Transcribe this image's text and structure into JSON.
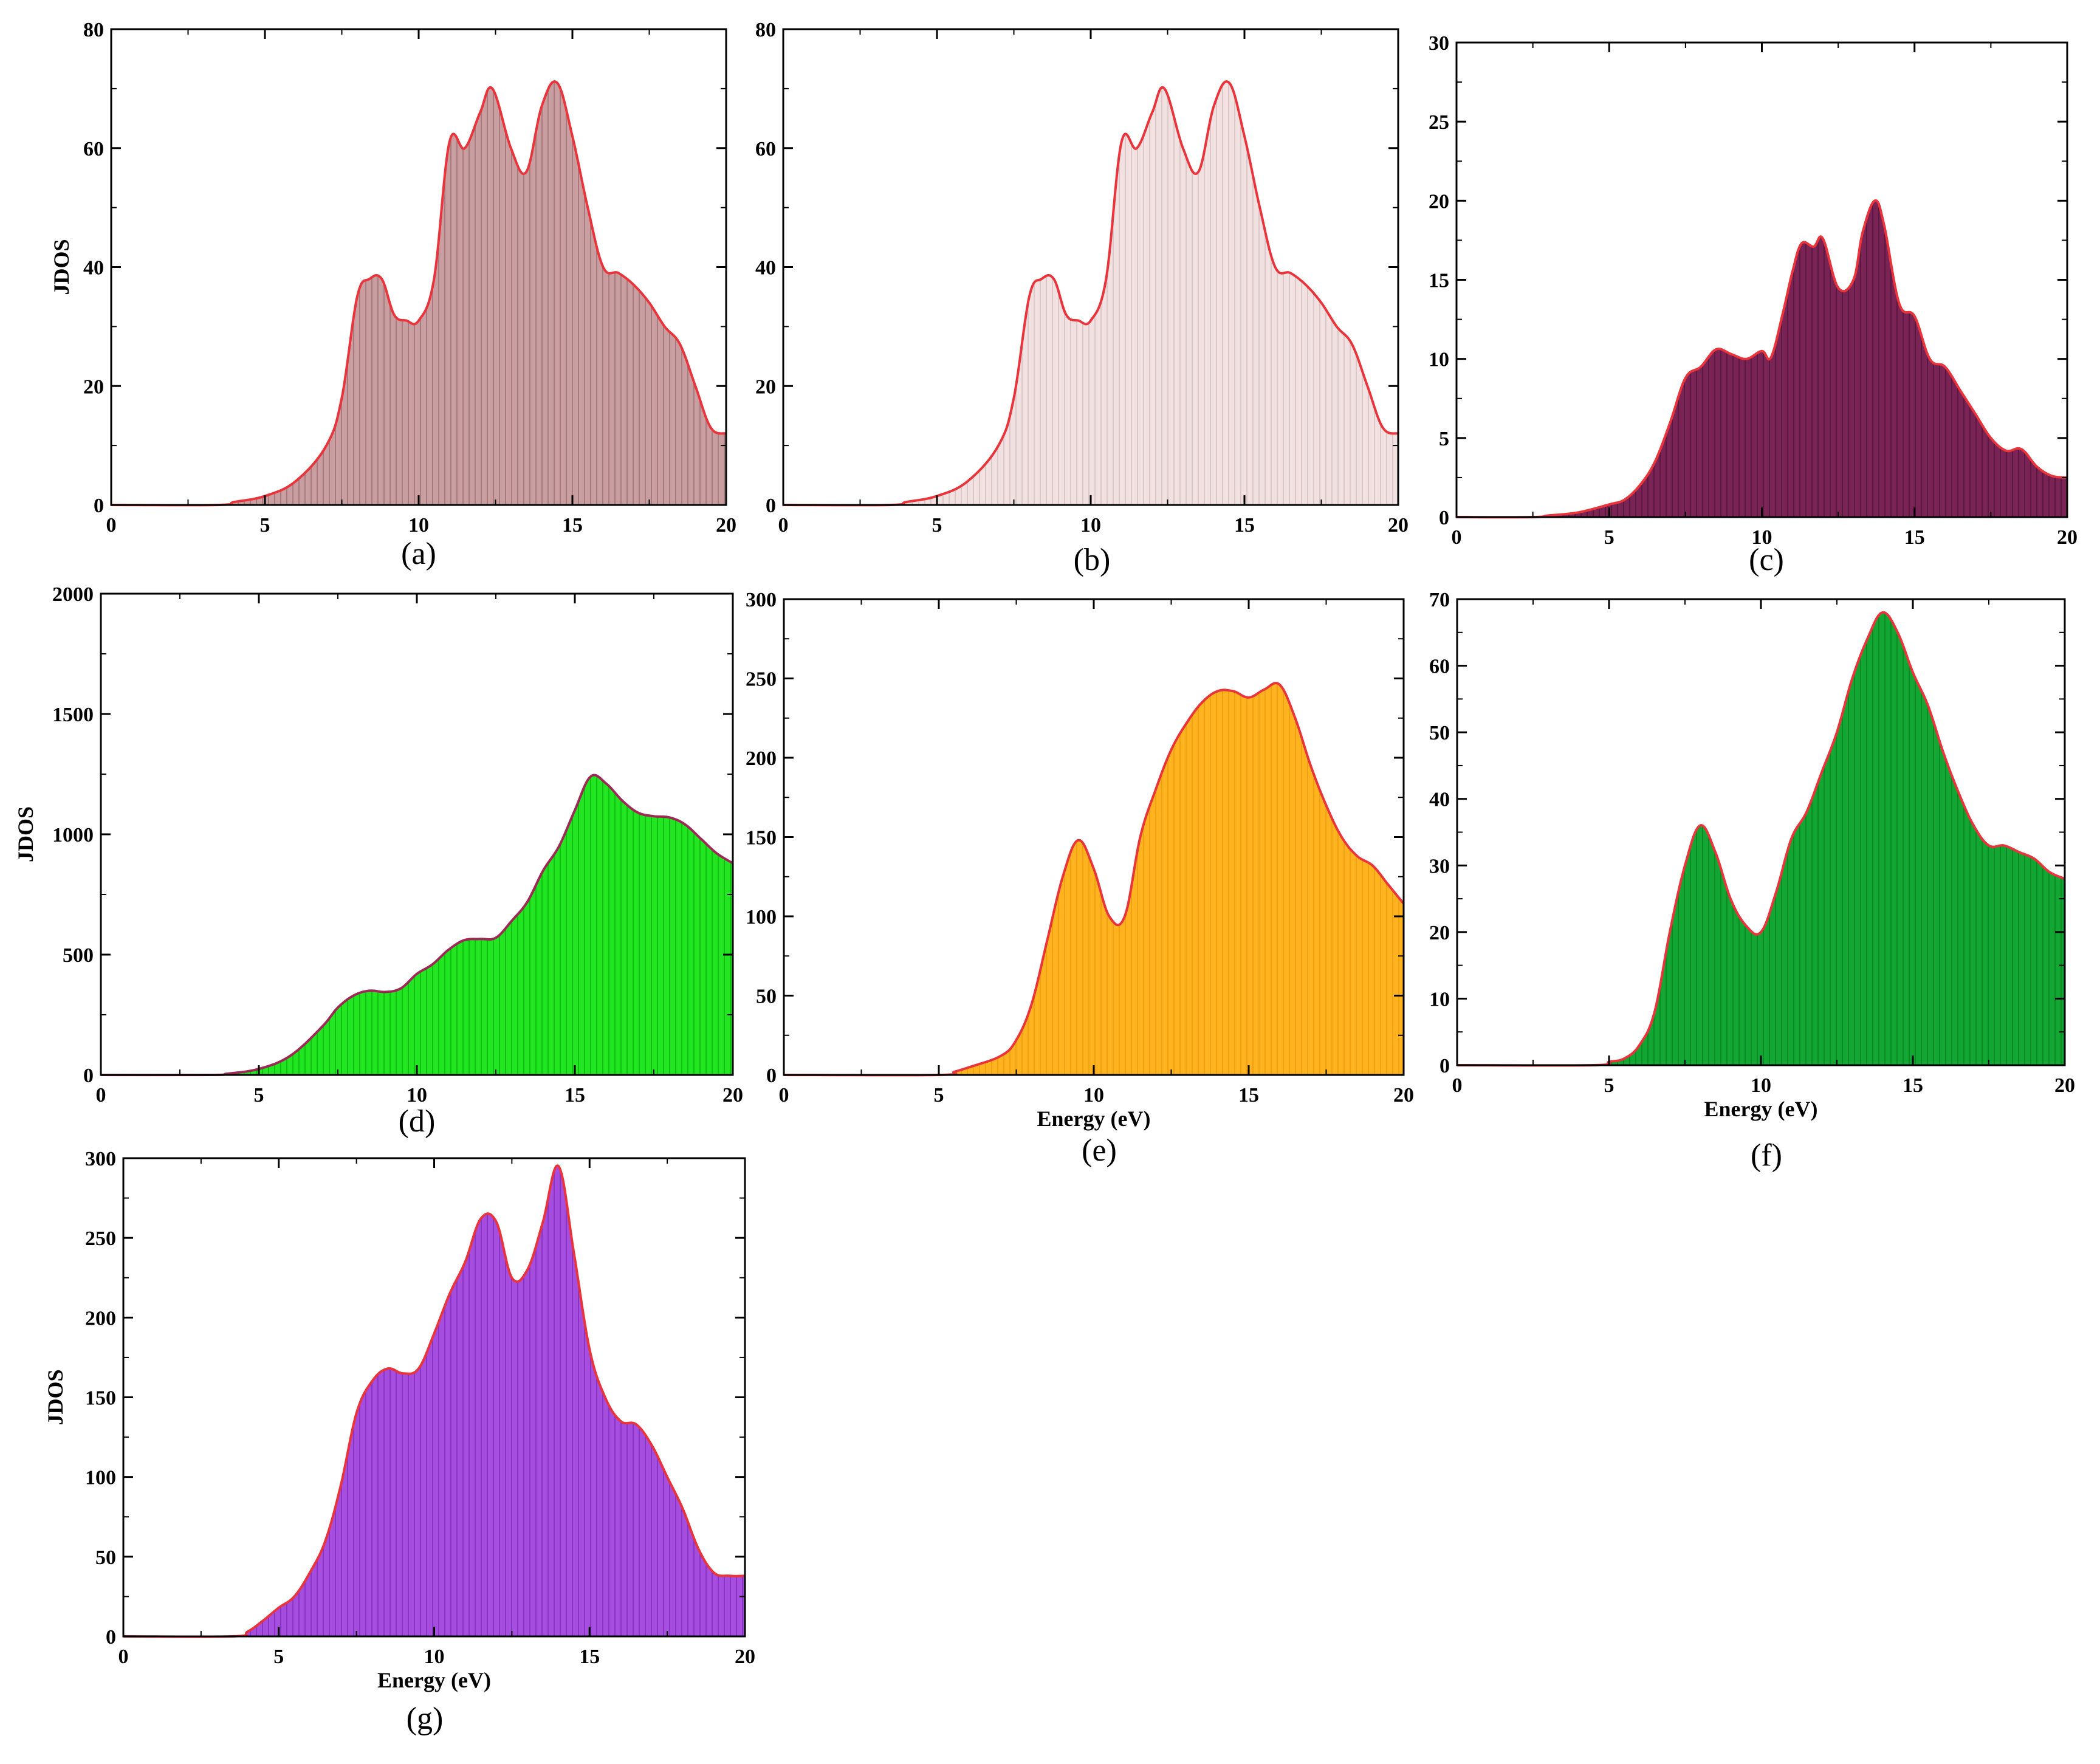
{
  "chart_data": [
    {
      "panel": "(a)",
      "type": "area",
      "ylabel": "JDOS",
      "xlabel": "",
      "xlim": [
        0,
        20
      ],
      "ylim": [
        0,
        80
      ],
      "xticks": [
        0,
        5,
        10,
        15,
        20
      ],
      "yticks": [
        0,
        20,
        40,
        60,
        80
      ],
      "fill_color": "#c99ea0",
      "hatch_color": "#a87a7d",
      "line_color": "#e8343a",
      "x": [
        0,
        3.5,
        4,
        5,
        6,
        7,
        7.5,
        8,
        8.4,
        8.8,
        9.2,
        9.6,
        10,
        10.5,
        11,
        11.5,
        12,
        12.4,
        13,
        13.5,
        14,
        14.5,
        15,
        15.5,
        16,
        16.5,
        17,
        17.5,
        18,
        18.5,
        19,
        19.5,
        20
      ],
      "y": [
        0,
        0,
        0.5,
        1.5,
        4,
        10,
        18,
        35,
        38,
        38,
        32,
        31,
        31,
        38,
        61,
        60,
        66,
        70,
        60,
        56,
        67,
        71,
        62,
        50,
        40,
        39,
        37,
        34,
        30,
        27,
        20,
        13,
        12
      ]
    },
    {
      "panel": "(b)",
      "type": "area",
      "ylabel": "",
      "xlabel": "",
      "xlim": [
        0,
        20
      ],
      "ylim": [
        0,
        80
      ],
      "xticks": [
        0,
        5,
        10,
        15,
        20
      ],
      "yticks": [
        0,
        20,
        40,
        60,
        80
      ],
      "fill_color": "#f1e1e1",
      "hatch_color": "#dcc6c6",
      "line_color": "#e8343a",
      "x": [
        0,
        3.5,
        4,
        5,
        6,
        7,
        7.5,
        8,
        8.4,
        8.8,
        9.2,
        9.6,
        10,
        10.5,
        11,
        11.5,
        12,
        12.4,
        13,
        13.5,
        14,
        14.5,
        15,
        15.5,
        16,
        16.5,
        17,
        17.5,
        18,
        18.5,
        19,
        19.5,
        20
      ],
      "y": [
        0,
        0,
        0.5,
        1.5,
        4,
        10,
        18,
        35,
        38,
        38,
        32,
        31,
        31,
        38,
        61,
        60,
        66,
        70,
        60,
        56,
        67,
        71,
        62,
        50,
        40,
        39,
        37,
        34,
        30,
        27,
        20,
        13,
        12
      ]
    },
    {
      "panel": "(c)",
      "type": "area",
      "ylabel": "",
      "xlabel": "",
      "xlim": [
        0,
        20
      ],
      "ylim": [
        0,
        30
      ],
      "xticks": [
        0,
        5,
        10,
        15,
        20
      ],
      "yticks": [
        0,
        5,
        10,
        15,
        20,
        25,
        30
      ],
      "fill_color": "#7a2355",
      "hatch_color": "#5a1840",
      "line_color": "#e8343a",
      "x": [
        0,
        2.5,
        3,
        4,
        5,
        5.5,
        6,
        6.5,
        7,
        7.5,
        8,
        8.5,
        9,
        9.5,
        10,
        10.3,
        10.7,
        11,
        11.3,
        11.7,
        12,
        12.5,
        13,
        13.3,
        13.7,
        14,
        14.5,
        15,
        15.5,
        16,
        16.5,
        17,
        17.5,
        18,
        18.5,
        19,
        19.5,
        20
      ],
      "y": [
        0,
        0,
        0.1,
        0.3,
        0.8,
        1.1,
        2,
        3.5,
        6,
        8.8,
        9.5,
        10.6,
        10.3,
        10,
        10.5,
        10.1,
        13,
        15.5,
        17.3,
        17.1,
        17.6,
        14.5,
        15,
        18,
        20,
        18.5,
        13.5,
        12.7,
        10,
        9.5,
        8,
        6.5,
        5,
        4.2,
        4.3,
        3.2,
        2.6,
        2.5
      ]
    },
    {
      "panel": "(d)",
      "type": "area",
      "ylabel": "JDOS",
      "xlabel": "",
      "xlim": [
        0,
        20
      ],
      "ylim": [
        0,
        2000
      ],
      "xticks": [
        0,
        5,
        10,
        15,
        20
      ],
      "yticks": [
        0,
        500,
        1000,
        1500,
        2000
      ],
      "fill_color": "#22e622",
      "hatch_color": "#12c012",
      "line_color": "#9c2a55",
      "x": [
        0,
        3.5,
        4,
        5,
        6,
        7,
        7.5,
        8,
        8.5,
        9,
        9.5,
        10,
        10.5,
        11,
        11.5,
        12,
        12.5,
        13,
        13.5,
        14,
        14.5,
        15,
        15.5,
        16,
        16.5,
        17,
        17.5,
        18,
        18.5,
        19,
        19.5,
        20
      ],
      "y": [
        0,
        0,
        5,
        25,
        80,
        200,
        280,
        330,
        350,
        345,
        360,
        420,
        460,
        520,
        560,
        565,
        570,
        640,
        720,
        850,
        950,
        1100,
        1240,
        1210,
        1140,
        1090,
        1075,
        1070,
        1040,
        980,
        920,
        880
      ]
    },
    {
      "panel": "(e)",
      "type": "area",
      "ylabel": "",
      "xlabel": "Energy (eV)",
      "xlim": [
        0,
        20
      ],
      "ylim": [
        0,
        300
      ],
      "xticks": [
        0,
        5,
        10,
        15,
        20
      ],
      "yticks": [
        0,
        50,
        100,
        150,
        200,
        250,
        300
      ],
      "ytick_labels": [
        "0",
        "50",
        "100",
        "150",
        "200",
        "250",
        "300"
      ],
      "fill_color": "#ffb31e",
      "hatch_color": "#f0a010",
      "line_color": "#e8343a",
      "x": [
        0,
        5,
        5.5,
        6,
        7,
        7.5,
        8,
        8.5,
        9,
        9.5,
        10,
        10.5,
        11,
        11.5,
        12,
        12.5,
        13,
        13.5,
        14,
        14.5,
        15,
        15.5,
        16,
        16.5,
        17,
        17.5,
        18,
        18.5,
        19,
        19.5,
        20
      ],
      "y": [
        0,
        0,
        2,
        5,
        12,
        22,
        45,
        85,
        125,
        148,
        130,
        100,
        100,
        150,
        180,
        205,
        222,
        235,
        242,
        242,
        238,
        243,
        246,
        225,
        195,
        170,
        150,
        138,
        132,
        120,
        108
      ]
    },
    {
      "panel": "(f)",
      "type": "area",
      "ylabel": "",
      "xlabel": "Energy (eV)",
      "xlim": [
        0,
        20
      ],
      "ylim": [
        0,
        70
      ],
      "xticks": [
        0,
        5,
        10,
        15,
        20
      ],
      "yticks": [
        0,
        10,
        20,
        30,
        40,
        50,
        60,
        70
      ],
      "fill_color": "#12a733",
      "hatch_color": "#0a8a25",
      "line_color": "#e8343a",
      "x": [
        0,
        4.5,
        5,
        5.5,
        6,
        6.5,
        7,
        7.5,
        8,
        8.5,
        9,
        9.5,
        10,
        10.5,
        11,
        11.5,
        12,
        12.5,
        13,
        13.5,
        14,
        14.5,
        15,
        15.5,
        16,
        16.5,
        17,
        17.5,
        18,
        18.5,
        19,
        19.5,
        20
      ],
      "y": [
        0,
        0,
        0.5,
        1,
        3,
        8,
        20,
        30,
        36,
        32,
        25,
        21,
        20,
        26,
        34,
        38,
        44,
        50,
        58,
        64,
        68,
        65,
        59,
        54,
        47,
        41,
        36,
        33,
        33,
        32,
        31,
        29,
        28
      ]
    },
    {
      "panel": "(g)",
      "type": "area",
      "ylabel": "JDOS",
      "xlabel": "Energy (eV)",
      "xlim": [
        0,
        20
      ],
      "ylim": [
        0,
        300
      ],
      "xticks": [
        0,
        5,
        10,
        15,
        20
      ],
      "yticks": [
        0,
        50,
        100,
        150,
        200,
        250,
        300
      ],
      "fill_color": "#a54ddf",
      "hatch_color": "#8a34c4",
      "line_color": "#e8343a",
      "x": [
        0,
        3.5,
        4,
        4.5,
        5,
        5.5,
        6,
        6.5,
        7,
        7.5,
        8,
        8.5,
        9,
        9.5,
        10,
        10.5,
        11,
        11.5,
        12,
        12.5,
        13,
        13.5,
        14,
        14.5,
        15,
        15.5,
        16,
        16.5,
        17,
        17.5,
        18,
        18.5,
        19,
        19.5,
        20
      ],
      "y": [
        0,
        0,
        3,
        10,
        18,
        25,
        40,
        60,
        95,
        140,
        160,
        168,
        165,
        168,
        190,
        215,
        235,
        262,
        260,
        225,
        230,
        260,
        295,
        240,
        180,
        150,
        135,
        133,
        120,
        100,
        80,
        55,
        40,
        38,
        38
      ]
    }
  ],
  "captions": [
    "(a)",
    "(b)",
    "(c)",
    "(d)",
    "(e)",
    "(f)",
    "(g)"
  ]
}
